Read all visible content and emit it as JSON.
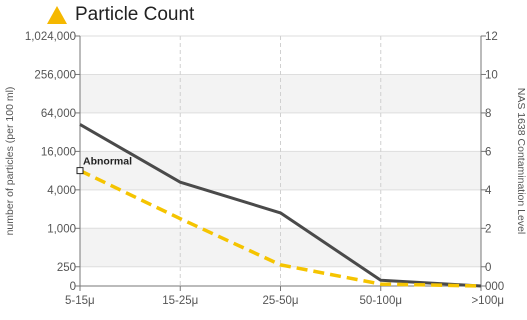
{
  "header": {
    "title": "Particle Count",
    "icon": "warning-triangle-icon",
    "icon_color": "#F5B800"
  },
  "chart_data": {
    "type": "line",
    "categories": [
      "5-15μ",
      "15-25μ",
      "25-50μ",
      "50-100μ",
      ">100μ"
    ],
    "y_left": {
      "label": "number of particles (per 100 ml)",
      "scale": "log",
      "ticks": [
        "0",
        "250",
        "1,000",
        "4,000",
        "16,000",
        "64,000",
        "256,000",
        "1,024,000"
      ]
    },
    "y_right": {
      "label": "NAS 1638 Contamination Level",
      "ticks": [
        "000",
        "0",
        "2",
        "4",
        "6",
        "8",
        "10",
        "12"
      ],
      "range": [
        -1,
        12
      ]
    },
    "series": [
      {
        "values": [
          7.4,
          4.4,
          2.8,
          -0.7,
          -1.0
        ],
        "color": "#4a4a4a",
        "style": "solid"
      },
      {
        "values": [
          5.0,
          2.5,
          0.1,
          -0.9,
          -1.0
        ],
        "color": "#F5C400",
        "style": "dashed"
      }
    ],
    "annotation": {
      "text": "Abnormal",
      "category": "5-15μ",
      "value": 5.0
    },
    "grid": true,
    "alternating_bands": true
  }
}
